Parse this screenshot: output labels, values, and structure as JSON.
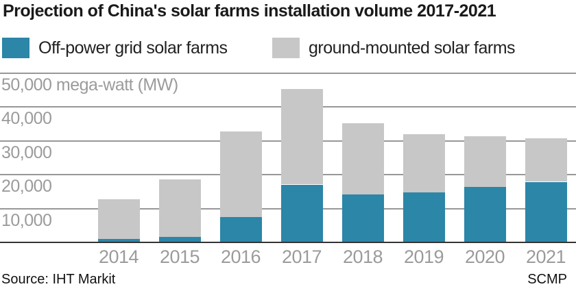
{
  "title": "Projection of China's solar farms installation volume 2017-2021",
  "legend": {
    "items": [
      {
        "label": "Off-power grid solar farms",
        "color": "#2b86a8"
      },
      {
        "label": "ground-mounted solar farms",
        "color": "#c7c7c7"
      }
    ]
  },
  "chart_data": {
    "type": "bar",
    "stacked": true,
    "title": "Projection of China's solar farms installation volume 2017-2021",
    "categories": [
      "2014",
      "2015",
      "2016",
      "2017",
      "2018",
      "2019",
      "2020",
      "2021"
    ],
    "series": [
      {
        "name": "Off-power grid solar farms",
        "color": "#2b86a8",
        "values": [
          800,
          1500,
          7300,
          16900,
          14000,
          14600,
          16200,
          17700
        ]
      },
      {
        "name": "ground-mounted solar farms",
        "color": "#c7c7c7",
        "values": [
          11700,
          17000,
          25300,
          28200,
          21100,
          17200,
          14900,
          12900
        ]
      }
    ],
    "totals": [
      12500,
      18500,
      32600,
      45100,
      35100,
      31800,
      31100,
      30600
    ],
    "ylabel": "mega-watt (MW)",
    "ylim": [
      0,
      50000
    ],
    "yticks": [
      50000,
      40000,
      30000,
      20000,
      10000
    ],
    "ytick_labels": [
      "50,000 mega-watt (MW)",
      "40,000",
      "30,000",
      "20,000",
      "10,000"
    ],
    "grid": true,
    "legend_position": "top"
  },
  "footer": {
    "source": "Source: IHT Markit",
    "credit": "SCMP"
  }
}
